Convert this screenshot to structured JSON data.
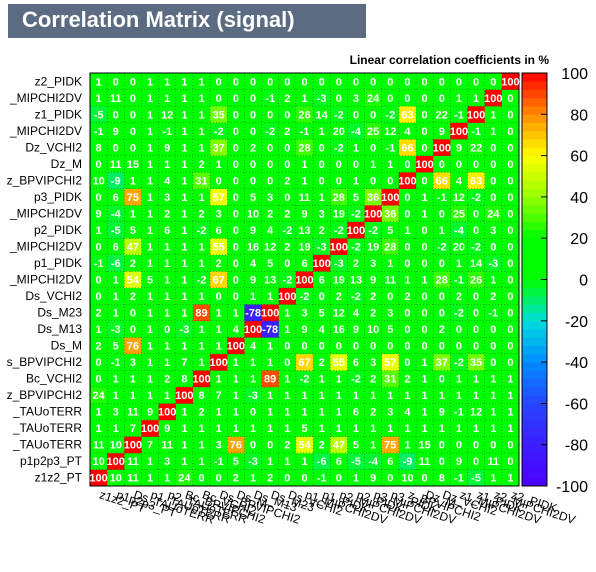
{
  "header": {
    "title": "Correlation Matrix (signal)"
  },
  "chart_data": {
    "type": "heatmap",
    "title": "Linear correlation coefficients in %",
    "variables": [
      "z1z2_PT",
      "p1p2p3_PT",
      "Ds_TAUoTERR",
      "p1_TAUoTERR",
      "p2_TAUoTERR",
      "Bc_BPVIPCHI2",
      "Bc_VCHI2",
      "Ds_BPVIPCHI2",
      "Ds_M",
      "Ds_M13",
      "Ds_M23",
      "Ds_VCHI2",
      "p1_MIPCHI2DV",
      "p1_PIDK",
      "p2_MIPCHI2DV",
      "p2_PIDK",
      "p3_MIPCHI2DV",
      "p3_PIDK",
      "z_BPVIPCHI2",
      "Dz_M",
      "Dz_VCHI2",
      "z1_MIPCHI2DV",
      "z1_PIDK",
      "z2_MIPCHI2DV",
      "z2_PIDK"
    ],
    "row_labels": [
      "z1z2_PT",
      "p1p2p3_PT",
      "_TAUoTERR",
      "_TAUoTERR",
      "_TAUoTERR",
      "z_BPVIPCHI2",
      "Bc_VCHI2",
      "s_BPVIPCHI2",
      "Ds_M",
      "Ds_M13",
      "Ds_M23",
      "Ds_VCHI2",
      "_MIPCHI2DV",
      "p1_PIDK",
      "_MIPCHI2DV",
      "p2_PIDK",
      "_MIPCHI2DV",
      "p3_PIDK",
      "z_BPVIPCHI2",
      "Dz_M",
      "Dz_VCHI2",
      "_MIPCHI2DV",
      "z1_PIDK",
      "_MIPCHI2DV",
      "z2_PIDK"
    ],
    "values": [
      [
        100,
        10,
        11,
        1,
        1,
        24,
        0,
        0,
        2,
        1,
        2,
        0,
        0,
        -1,
        0,
        1,
        9,
        0,
        10,
        0,
        8,
        -1,
        -5,
        1,
        1
      ],
      [
        10,
        100,
        11,
        1,
        3,
        1,
        1,
        -1,
        5,
        -3,
        1,
        1,
        1,
        -6,
        6,
        -5,
        -4,
        6,
        -9,
        11,
        0,
        9,
        0,
        11,
        0
      ],
      [
        11,
        10,
        100,
        7,
        11,
        1,
        1,
        3,
        76,
        0,
        0,
        2,
        54,
        2,
        47,
        5,
        1,
        75,
        1,
        15,
        0,
        0,
        0,
        0,
        0
      ],
      [
        1,
        1,
        7,
        100,
        9,
        1,
        1,
        1,
        1,
        1,
        1,
        1,
        5,
        1,
        1,
        1,
        1,
        1,
        1,
        1,
        1,
        1,
        1,
        1,
        1
      ],
      [
        1,
        3,
        11,
        9,
        100,
        1,
        2,
        1,
        1,
        0,
        1,
        1,
        1,
        1,
        1,
        6,
        2,
        3,
        4,
        1,
        9,
        -1,
        12,
        1,
        1
      ],
      [
        24,
        1,
        1,
        1,
        1,
        100,
        8,
        7,
        1,
        -3,
        1,
        1,
        1,
        1,
        1,
        1,
        1,
        1,
        1,
        1,
        1,
        1,
        1,
        1,
        1
      ],
      [
        0,
        1,
        1,
        1,
        2,
        8,
        100,
        1,
        1,
        1,
        89,
        1,
        -2,
        1,
        1,
        -2,
        2,
        31,
        2,
        1,
        0,
        1,
        1,
        1,
        1
      ],
      [
        0,
        -1,
        3,
        1,
        1,
        7,
        1,
        100,
        1,
        1,
        1,
        0,
        67,
        2,
        55,
        6,
        3,
        57,
        0,
        1,
        37,
        -2,
        35,
        0,
        0
      ],
      [
        2,
        5,
        76,
        1,
        1,
        1,
        1,
        1,
        100,
        4,
        1,
        0,
        0,
        0,
        0,
        0,
        0,
        0,
        0,
        0,
        0,
        0,
        0,
        0,
        0
      ],
      [
        1,
        -3,
        0,
        1,
        0,
        -3,
        1,
        1,
        4,
        100,
        -78,
        1,
        9,
        4,
        16,
        9,
        10,
        5,
        0,
        0,
        2,
        0,
        0,
        0,
        0
      ],
      [
        2,
        1,
        0,
        1,
        1,
        1,
        89,
        1,
        1,
        -78,
        100,
        1,
        3,
        5,
        12,
        4,
        2,
        3,
        0,
        0,
        0,
        -2,
        0,
        -1,
        0
      ],
      [
        0,
        1,
        2,
        1,
        1,
        1,
        1,
        0,
        0,
        1,
        1,
        100,
        -2,
        0,
        2,
        -2,
        2,
        0,
        2,
        0,
        0,
        2,
        0,
        2,
        0
      ],
      [
        0,
        1,
        54,
        5,
        1,
        1,
        -2,
        67,
        0,
        9,
        13,
        -2,
        100,
        6,
        19,
        13,
        9,
        11,
        1,
        1,
        28,
        -1,
        26,
        1,
        0
      ],
      [
        -1,
        -6,
        2,
        1,
        1,
        1,
        1,
        2,
        0,
        4,
        5,
        0,
        6,
        100,
        -3,
        2,
        3,
        1,
        0,
        0,
        0,
        1,
        14,
        -3,
        0
      ],
      [
        0,
        6,
        47,
        1,
        1,
        1,
        1,
        55,
        0,
        16,
        12,
        2,
        19,
        -3,
        100,
        -2,
        19,
        28,
        0,
        0,
        -2,
        20,
        -2,
        0,
        0
      ],
      [
        1,
        -5,
        5,
        1,
        6,
        1,
        -2,
        6,
        0,
        9,
        4,
        -2,
        13,
        2,
        -2,
        100,
        -2,
        5,
        1,
        0,
        1,
        -4,
        0,
        3,
        0
      ],
      [
        9,
        -4,
        1,
        1,
        2,
        1,
        2,
        3,
        0,
        10,
        2,
        2,
        9,
        3,
        19,
        -2,
        100,
        36,
        0,
        1,
        0,
        25,
        0,
        24,
        0
      ],
      [
        0,
        6,
        75,
        1,
        3,
        1,
        1,
        57,
        0,
        5,
        3,
        0,
        11,
        1,
        28,
        5,
        36,
        100,
        0,
        1,
        -1,
        12,
        -2,
        0,
        0
      ],
      [
        10,
        -9,
        1,
        1,
        4,
        1,
        31,
        0,
        0,
        0,
        0,
        2,
        1,
        0,
        0,
        1,
        0,
        0,
        100,
        0,
        66,
        4,
        63,
        0,
        0
      ],
      [
        0,
        11,
        15,
        1,
        1,
        1,
        2,
        1,
        0,
        0,
        0,
        0,
        1,
        0,
        0,
        0,
        1,
        1,
        0,
        100,
        0,
        0,
        0,
        0,
        0
      ],
      [
        8,
        0,
        0,
        1,
        9,
        1,
        1,
        37,
        0,
        2,
        0,
        0,
        28,
        0,
        -2,
        1,
        0,
        -1,
        66,
        0,
        100,
        9,
        22,
        0,
        0
      ],
      [
        -1,
        9,
        0,
        1,
        -1,
        1,
        1,
        -2,
        0,
        0,
        -2,
        2,
        -1,
        1,
        20,
        -4,
        25,
        12,
        4,
        0,
        9,
        100,
        -1,
        1,
        0
      ],
      [
        -5,
        0,
        0,
        1,
        12,
        1,
        1,
        35,
        0,
        0,
        0,
        0,
        26,
        14,
        -2,
        0,
        0,
        -2,
        63,
        0,
        22,
        -1,
        100,
        1,
        0
      ],
      [
        1,
        11,
        0,
        1,
        1,
        1,
        1,
        0,
        0,
        0,
        -1,
        2,
        1,
        -3,
        0,
        3,
        24,
        0,
        0,
        0,
        0,
        1,
        1,
        100,
        0
      ],
      [
        1,
        0,
        0,
        1,
        1,
        1,
        1,
        0,
        0,
        0,
        0,
        0,
        0,
        0,
        0,
        0,
        0,
        0,
        0,
        0,
        0,
        0,
        0,
        0,
        100
      ]
    ],
    "zlim": [
      -100,
      100
    ],
    "z_ticks": [
      100,
      80,
      60,
      40,
      20,
      0,
      -20,
      -40,
      -60,
      -80,
      -100
    ],
    "palette_low": "#4b00ff",
    "palette_mid": "#00ff00",
    "palette_high": "#ff0000"
  }
}
